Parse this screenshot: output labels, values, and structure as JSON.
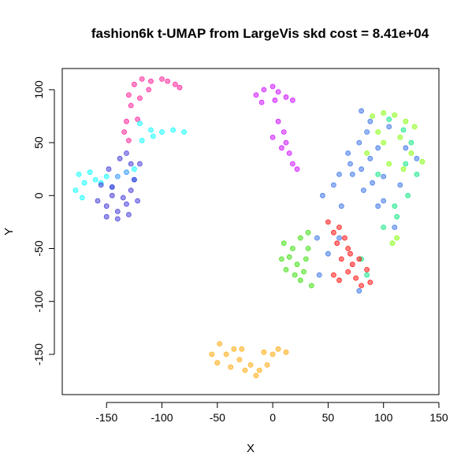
{
  "chart_data": {
    "type": "scatter",
    "title": "fashion6k t-UMAP from LargeVis skd cost = 8.41e+04",
    "xlabel": "X",
    "ylabel": "Y",
    "xlim": [
      -190,
      150
    ],
    "ylim": [
      -188,
      120
    ],
    "xticks": [
      -150,
      -100,
      -50,
      0,
      50,
      100,
      150
    ],
    "yticks": [
      -150,
      -100,
      -50,
      0,
      50,
      100
    ],
    "xtick_labels": [
      "-150",
      "-100",
      "-50",
      "0",
      "50",
      "100",
      "150"
    ],
    "ytick_labels": [
      "-150",
      "-100",
      "-50",
      "0",
      "50",
      "100"
    ],
    "grid": false,
    "legend": "none",
    "point_opacity": 0.5,
    "clusters": [
      {
        "color": "#ff1493",
        "points": [
          [
            -130,
            95
          ],
          [
            -125,
            105
          ],
          [
            -118,
            110
          ],
          [
            -110,
            108
          ],
          [
            -100,
            110
          ],
          [
            -95,
            108
          ],
          [
            -88,
            105
          ],
          [
            -84,
            102
          ],
          [
            -128,
            85
          ],
          [
            -132,
            70
          ],
          [
            -134,
            60
          ],
          [
            -130,
            52
          ],
          [
            -122,
            72
          ],
          [
            -120,
            92
          ],
          [
            -112,
            100
          ]
        ]
      },
      {
        "color": "#1e90ff",
        "points": [
          [
            -140,
            18
          ],
          [
            -132,
            22
          ],
          [
            -125,
            15
          ],
          [
            -145,
            8
          ]
        ]
      },
      {
        "color": "#00ffff",
        "points": [
          [
            -120,
            68
          ],
          [
            -110,
            62
          ],
          [
            -100,
            60
          ],
          [
            -90,
            62
          ],
          [
            -80,
            60
          ],
          [
            -118,
            52
          ],
          [
            -108,
            56
          ],
          [
            -175,
            20
          ],
          [
            -170,
            12
          ],
          [
            -165,
            22
          ],
          [
            -160,
            15
          ],
          [
            -155,
            12
          ],
          [
            -178,
            5
          ],
          [
            -172,
            -2
          ],
          [
            -150,
            18
          ],
          [
            -125,
            25
          ]
        ]
      },
      {
        "color": "#3a2fd6",
        "points": [
          [
            -158,
            -5
          ],
          [
            -150,
            -10
          ],
          [
            -145,
            0
          ],
          [
            -140,
            -15
          ],
          [
            -132,
            -8
          ],
          [
            -128,
            5
          ],
          [
            -122,
            -5
          ],
          [
            -150,
            -20
          ],
          [
            -140,
            -22
          ],
          [
            -130,
            -18
          ],
          [
            -155,
            10
          ],
          [
            -125,
            15
          ],
          [
            -135,
            -2
          ],
          [
            -145,
            8
          ],
          [
            -132,
            40
          ],
          [
            -128,
            30
          ],
          [
            -138,
            35
          ],
          [
            -148,
            25
          ],
          [
            -120,
            30
          ]
        ]
      },
      {
        "color": "#cc00ff",
        "points": [
          [
            -15,
            95
          ],
          [
            -8,
            100
          ],
          [
            0,
            103
          ],
          [
            5,
            98
          ],
          [
            12,
            93
          ],
          [
            18,
            90
          ],
          [
            -10,
            88
          ],
          [
            2,
            90
          ],
          [
            5,
            70
          ],
          [
            10,
            60
          ],
          [
            12,
            50
          ],
          [
            15,
            40
          ],
          [
            18,
            30
          ],
          [
            22,
            25
          ],
          [
            0,
            55
          ],
          [
            8,
            45
          ]
        ]
      },
      {
        "color": "#2e6be6",
        "points": [
          [
            45,
            0
          ],
          [
            55,
            10
          ],
          [
            60,
            20
          ],
          [
            70,
            30
          ],
          [
            80,
            25
          ],
          [
            88,
            35
          ],
          [
            95,
            45
          ],
          [
            78,
            50
          ],
          [
            85,
            60
          ],
          [
            72,
            20
          ],
          [
            62,
            -10
          ],
          [
            82,
            5
          ],
          [
            90,
            12
          ],
          [
            100,
            18
          ],
          [
            88,
            70
          ],
          [
            80,
            80
          ],
          [
            68,
            40
          ],
          [
            95,
            -10
          ],
          [
            40,
            -40
          ],
          [
            50,
            -55
          ],
          [
            42,
            -75
          ],
          [
            78,
            -90
          ],
          [
            60,
            -40
          ],
          [
            110,
            -30
          ],
          [
            105,
            65
          ],
          [
            120,
            45
          ],
          [
            130,
            35
          ],
          [
            115,
            10
          ],
          [
            100,
            -5
          ]
        ]
      },
      {
        "color": "#7fff00",
        "points": [
          [
            90,
            75
          ],
          [
            100,
            78
          ],
          [
            110,
            76
          ],
          [
            120,
            70
          ],
          [
            128,
            65
          ],
          [
            115,
            55
          ],
          [
            125,
            40
          ],
          [
            135,
            32
          ],
          [
            105,
            30
          ],
          [
            95,
            60
          ],
          [
            118,
            25
          ],
          [
            112,
            -40
          ],
          [
            108,
            -45
          ],
          [
            85,
            40
          ],
          [
            100,
            50
          ]
        ]
      },
      {
        "color": "#00e680",
        "points": [
          [
            105,
            72
          ],
          [
            118,
            62
          ],
          [
            130,
            20
          ],
          [
            122,
            0
          ],
          [
            112,
            -20
          ],
          [
            100,
            -30
          ],
          [
            110,
            -10
          ],
          [
            95,
            20
          ],
          [
            120,
            30
          ],
          [
            80,
            -60
          ],
          [
            85,
            -75
          ],
          [
            125,
            50
          ]
        ]
      },
      {
        "color": "#33dd00",
        "points": [
          [
            10,
            -45
          ],
          [
            18,
            -50
          ],
          [
            15,
            -58
          ],
          [
            8,
            -60
          ],
          [
            22,
            -65
          ],
          [
            20,
            -75
          ],
          [
            25,
            -80
          ],
          [
            28,
            -72
          ],
          [
            30,
            -60
          ],
          [
            32,
            -50
          ],
          [
            25,
            -40
          ],
          [
            32,
            -35
          ],
          [
            12,
            -70
          ],
          [
            35,
            -85
          ]
        ]
      },
      {
        "color": "#ff0000",
        "points": [
          [
            50,
            -25
          ],
          [
            55,
            -35
          ],
          [
            60,
            -30
          ],
          [
            65,
            -40
          ],
          [
            68,
            -50
          ],
          [
            70,
            -55
          ],
          [
            62,
            -60
          ],
          [
            55,
            -75
          ],
          [
            60,
            -80
          ],
          [
            68,
            -72
          ],
          [
            75,
            -78
          ],
          [
            80,
            -85
          ],
          [
            85,
            -70
          ],
          [
            72,
            -65
          ],
          [
            78,
            -60
          ],
          [
            88,
            -82
          ],
          [
            58,
            -45
          ]
        ]
      },
      {
        "color": "#ffa500",
        "points": [
          [
            -55,
            -150
          ],
          [
            -48,
            -140
          ],
          [
            -42,
            -150
          ],
          [
            -38,
            -162
          ],
          [
            -30,
            -155
          ],
          [
            -25,
            -165
          ],
          [
            -20,
            -160
          ],
          [
            -12,
            -165
          ],
          [
            -5,
            -160
          ],
          [
            0,
            -150
          ],
          [
            -8,
            -148
          ],
          [
            5,
            -145
          ],
          [
            12,
            -148
          ],
          [
            -15,
            -170
          ],
          [
            -35,
            -145
          ],
          [
            -50,
            -158
          ],
          [
            -28,
            -145
          ]
        ]
      }
    ]
  }
}
